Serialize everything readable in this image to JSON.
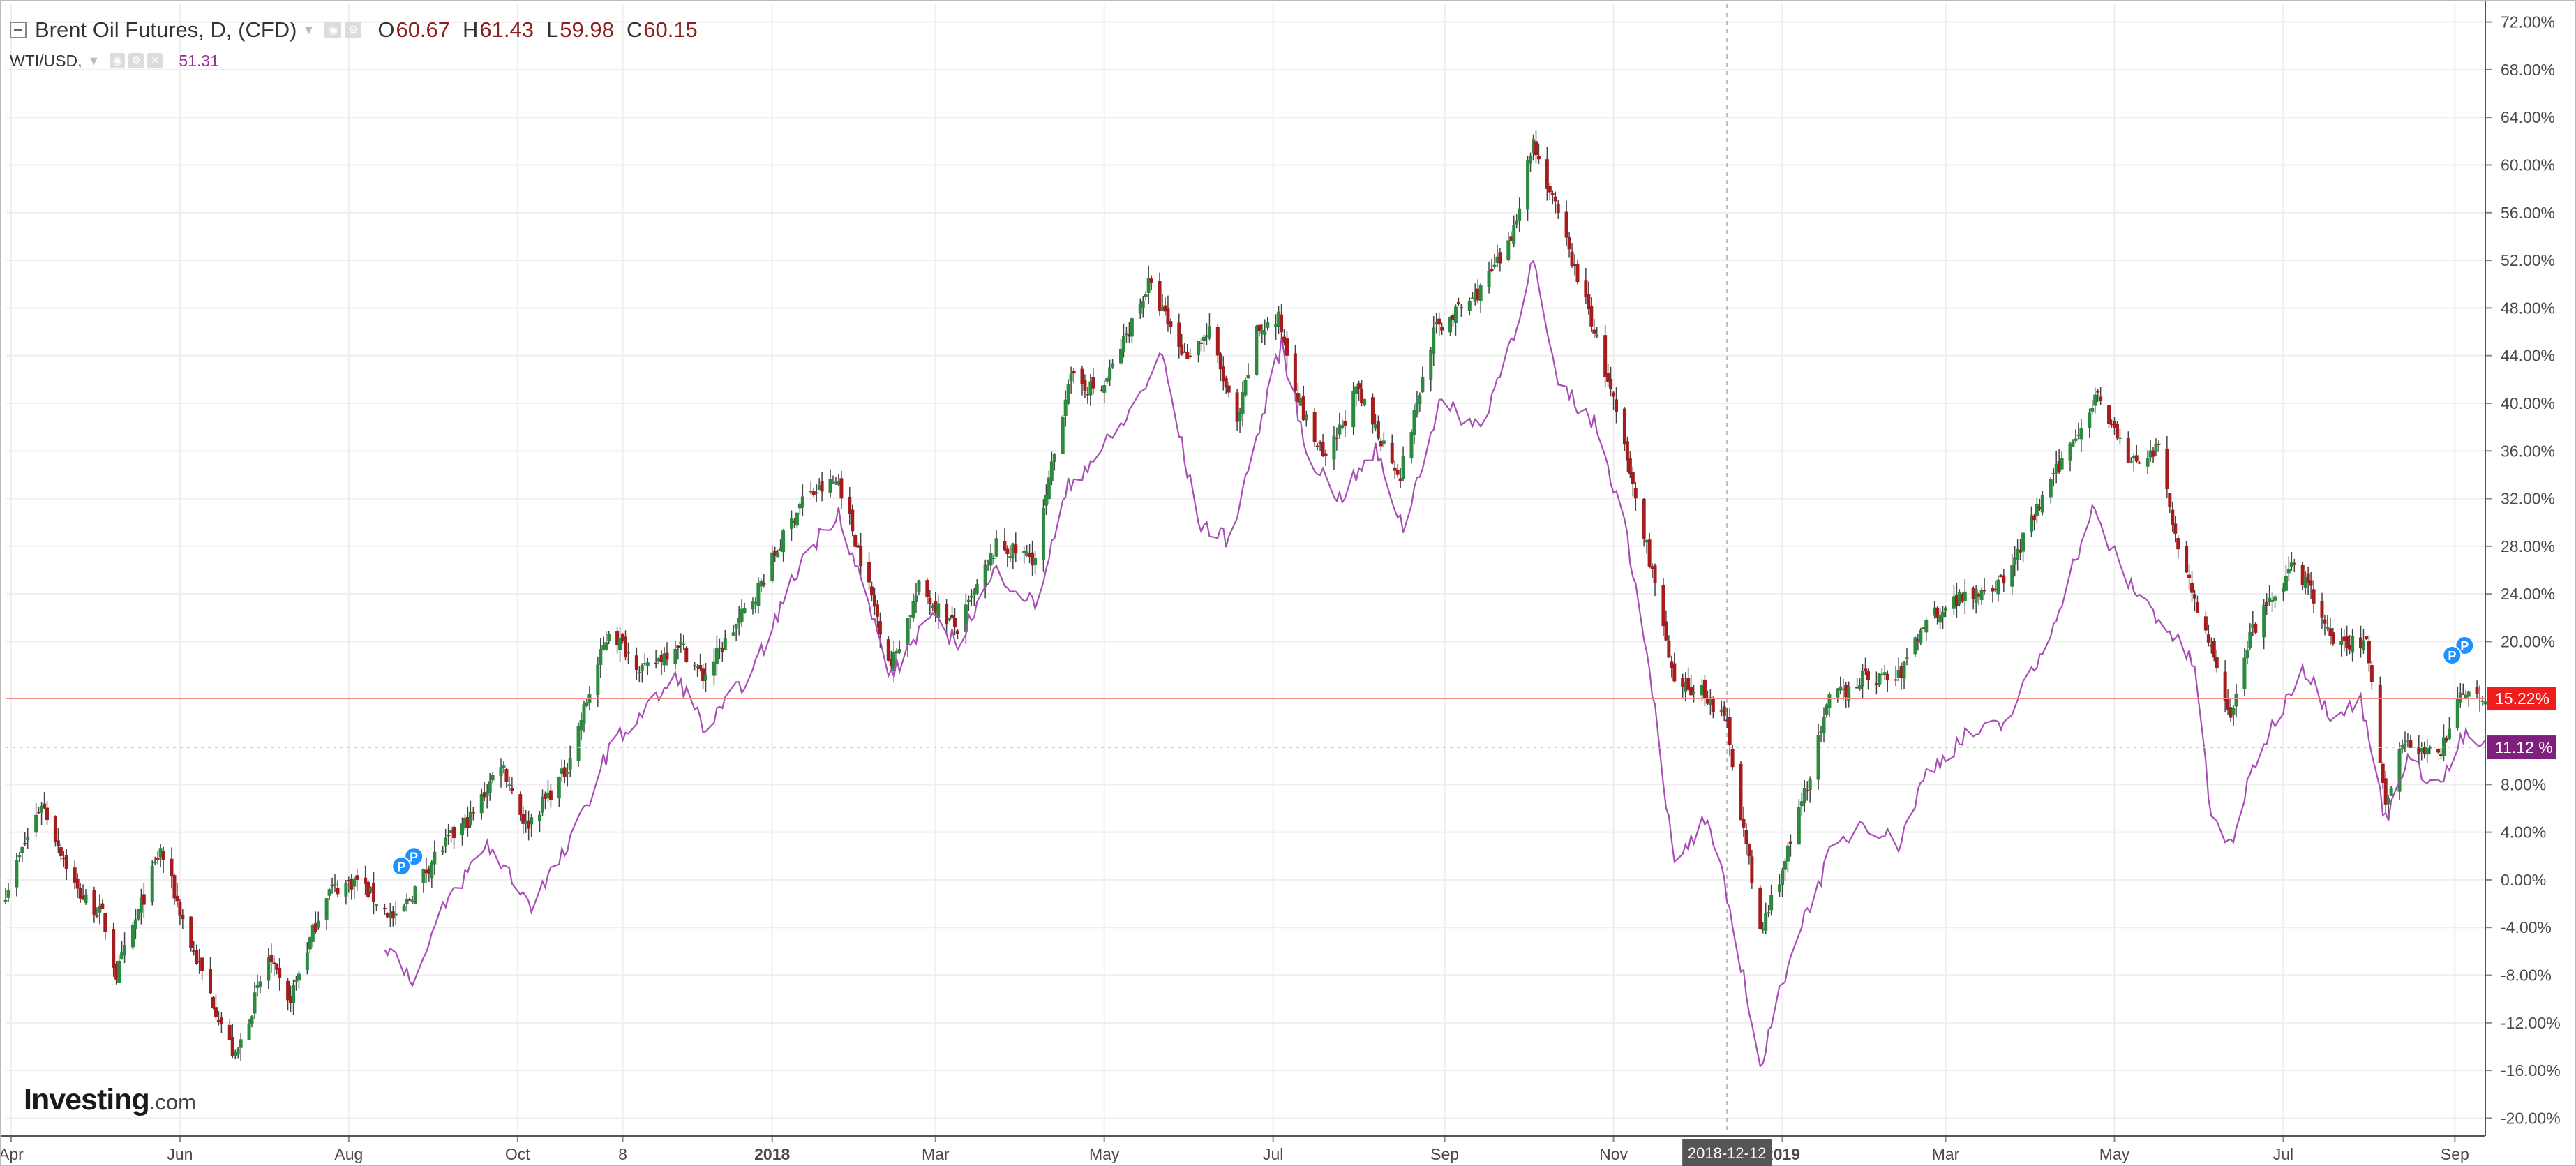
{
  "header": {
    "title": "Brent Oil Futures, D, (CFD)",
    "ohlc": [
      {
        "key": "O",
        "value": "60.67"
      },
      {
        "key": "H",
        "value": "61.43"
      },
      {
        "key": "L",
        "value": "59.98"
      },
      {
        "key": "C",
        "value": "60.15"
      }
    ],
    "compare_symbol": "WTI/USD,",
    "compare_value": "51.31"
  },
  "logo": {
    "main": "Investing",
    "suffix": ".com"
  },
  "crosshair_date": "2018-12-12",
  "colors": {
    "up": "#2b8a3e",
    "down": "#a61c1c",
    "wti_line": "#a74fb5",
    "brent_price_line": "#f28a8a",
    "brent_label_bg": "#f01d1d",
    "wti_label_bg": "#7f2080",
    "grid": "#eeeeee",
    "event_marker": "#1e90ff"
  },
  "chart_data": {
    "type": "line",
    "title": "Brent Oil Futures, D, (CFD)",
    "xlabel": "",
    "ylabel": "",
    "y_unit": "%",
    "ylim": [
      -21.5,
      73.5
    ],
    "grid": true,
    "legend": "top-left",
    "x_range": [
      "2017-03-30",
      "2019-09-12"
    ],
    "x_ticks": [
      {
        "label": "Apr",
        "date": "2017-04-01"
      },
      {
        "label": "Jun",
        "date": "2017-06-01"
      },
      {
        "label": "Aug",
        "date": "2017-08-01"
      },
      {
        "label": "Oct",
        "date": "2017-10-01"
      },
      {
        "label": "8",
        "date": "2017-11-08"
      },
      {
        "label": "2018",
        "date": "2018-01-01"
      },
      {
        "label": "Mar",
        "date": "2018-03-01"
      },
      {
        "label": "May",
        "date": "2018-05-01"
      },
      {
        "label": "Jul",
        "date": "2018-07-01"
      },
      {
        "label": "Sep",
        "date": "2018-09-01"
      },
      {
        "label": "Nov",
        "date": "2018-11-01"
      },
      {
        "label": "2019",
        "date": "2019-01-01"
      },
      {
        "label": "Mar",
        "date": "2019-03-01"
      },
      {
        "label": "May",
        "date": "2019-05-01"
      },
      {
        "label": "Jul",
        "date": "2019-07-01"
      },
      {
        "label": "Sep",
        "date": "2019-09-01"
      }
    ],
    "y_ticks": [
      {
        "value": 72,
        "label": "72.00%"
      },
      {
        "value": 68,
        "label": "68.00%"
      },
      {
        "value": 64,
        "label": "64.00%"
      },
      {
        "value": 60,
        "label": "60.00%"
      },
      {
        "value": 56,
        "label": "56.00%"
      },
      {
        "value": 52,
        "label": "52.00%"
      },
      {
        "value": 48,
        "label": "48.00%"
      },
      {
        "value": 44,
        "label": "44.00%"
      },
      {
        "value": 40,
        "label": "40.00%"
      },
      {
        "value": 36,
        "label": "36.00%"
      },
      {
        "value": 32,
        "label": "32.00%"
      },
      {
        "value": 28,
        "label": "28.00%"
      },
      {
        "value": 24,
        "label": "24.00%"
      },
      {
        "value": 20,
        "label": "20.00%"
      },
      {
        "value": 8,
        "label": "8.00%"
      },
      {
        "value": 4,
        "label": "4.00%"
      },
      {
        "value": 0,
        "label": "0.00%"
      },
      {
        "value": -4,
        "label": "-4.00%"
      },
      {
        "value": -8,
        "label": "-8.00%"
      },
      {
        "value": -12,
        "label": "-12.00%"
      },
      {
        "value": -16,
        "label": "-16.00%"
      },
      {
        "value": -20,
        "label": "-20.00%"
      }
    ],
    "price_labels": [
      {
        "value": 15.22,
        "text": "15.22%",
        "series": "brent"
      },
      {
        "value": 11.12,
        "text": "11.12 %",
        "series": "wti"
      }
    ],
    "event_markers": [
      {
        "date": "2017-08-22",
        "value": 0.8,
        "text": "P"
      },
      {
        "date": "2019-09-02",
        "value": 18.5,
        "text": "P"
      }
    ],
    "series": [
      {
        "name": "Brent Oil Futures, D, (CFD)",
        "style": "candlestick",
        "points": [
          {
            "date": "2017-03-30",
            "value": -1
          },
          {
            "date": "2017-04-12",
            "value": 6.5
          },
          {
            "date": "2017-04-25",
            "value": -1
          },
          {
            "date": "2017-05-04",
            "value": -3
          },
          {
            "date": "2017-05-09",
            "value": -8
          },
          {
            "date": "2017-05-25",
            "value": 2.5
          },
          {
            "date": "2017-06-05",
            "value": -5.5
          },
          {
            "date": "2017-06-21",
            "value": -15
          },
          {
            "date": "2017-07-03",
            "value": -6.5
          },
          {
            "date": "2017-07-10",
            "value": -10.5
          },
          {
            "date": "2017-07-24",
            "value": -1
          },
          {
            "date": "2017-08-04",
            "value": 0
          },
          {
            "date": "2017-08-18",
            "value": -3.5
          },
          {
            "date": "2017-09-01",
            "value": 2
          },
          {
            "date": "2017-09-15",
            "value": 5.5
          },
          {
            "date": "2017-09-25",
            "value": 10
          },
          {
            "date": "2017-10-04",
            "value": 4.5
          },
          {
            "date": "2017-10-18",
            "value": 9
          },
          {
            "date": "2017-11-03",
            "value": 21
          },
          {
            "date": "2017-11-16",
            "value": 17.5
          },
          {
            "date": "2017-11-28",
            "value": 20
          },
          {
            "date": "2017-12-07",
            "value": 17
          },
          {
            "date": "2017-12-26",
            "value": 24
          },
          {
            "date": "2018-01-12",
            "value": 32
          },
          {
            "date": "2018-01-25",
            "value": 33.5
          },
          {
            "date": "2018-02-13",
            "value": 18
          },
          {
            "date": "2018-02-23",
            "value": 24.5
          },
          {
            "date": "2018-03-09",
            "value": 21
          },
          {
            "date": "2018-03-23",
            "value": 28
          },
          {
            "date": "2018-04-06",
            "value": 27
          },
          {
            "date": "2018-04-18",
            "value": 42
          },
          {
            "date": "2018-04-30",
            "value": 41
          },
          {
            "date": "2018-05-17",
            "value": 50
          },
          {
            "date": "2018-05-30",
            "value": 44
          },
          {
            "date": "2018-06-08",
            "value": 46
          },
          {
            "date": "2018-06-18",
            "value": 38
          },
          {
            "date": "2018-06-25",
            "value": 46
          },
          {
            "date": "2018-07-03",
            "value": 47
          },
          {
            "date": "2018-07-12",
            "value": 39
          },
          {
            "date": "2018-07-20",
            "value": 35
          },
          {
            "date": "2018-07-31",
            "value": 41
          },
          {
            "date": "2018-08-16",
            "value": 34
          },
          {
            "date": "2018-08-28",
            "value": 46
          },
          {
            "date": "2018-09-12",
            "value": 49
          },
          {
            "date": "2018-09-24",
            "value": 53
          },
          {
            "date": "2018-10-03",
            "value": 62
          },
          {
            "date": "2018-10-10",
            "value": 57
          },
          {
            "date": "2018-10-24",
            "value": 47
          },
          {
            "date": "2018-11-01",
            "value": 40
          },
          {
            "date": "2018-11-08",
            "value": 33
          },
          {
            "date": "2018-11-15",
            "value": 26
          },
          {
            "date": "2018-11-23",
            "value": 16
          },
          {
            "date": "2018-12-03",
            "value": 16
          },
          {
            "date": "2018-12-12",
            "value": 13
          },
          {
            "date": "2018-12-24",
            "value": -4.5
          },
          {
            "date": "2019-01-04",
            "value": 3
          },
          {
            "date": "2019-01-18",
            "value": 15
          },
          {
            "date": "2019-01-30",
            "value": 17
          },
          {
            "date": "2019-02-12",
            "value": 17
          },
          {
            "date": "2019-02-22",
            "value": 22
          },
          {
            "date": "2019-03-08",
            "value": 24
          },
          {
            "date": "2019-03-22",
            "value": 25
          },
          {
            "date": "2019-04-05",
            "value": 32
          },
          {
            "date": "2019-04-25",
            "value": 41
          },
          {
            "date": "2019-05-06",
            "value": 35
          },
          {
            "date": "2019-05-17",
            "value": 36
          },
          {
            "date": "2019-05-23",
            "value": 29
          },
          {
            "date": "2019-06-05",
            "value": 19
          },
          {
            "date": "2019-06-12",
            "value": 14
          },
          {
            "date": "2019-06-20",
            "value": 21
          },
          {
            "date": "2019-07-04",
            "value": 26
          },
          {
            "date": "2019-07-10",
            "value": 25
          },
          {
            "date": "2019-07-18",
            "value": 20
          },
          {
            "date": "2019-07-31",
            "value": 20
          },
          {
            "date": "2019-08-07",
            "value": 6.5
          },
          {
            "date": "2019-08-14",
            "value": 12
          },
          {
            "date": "2019-08-26",
            "value": 10
          },
          {
            "date": "2019-09-03",
            "value": 16
          },
          {
            "date": "2019-09-12",
            "value": 15.22
          }
        ]
      },
      {
        "name": "WTI/USD,",
        "style": "line",
        "points": [
          {
            "date": "2017-08-13",
            "value": -5
          },
          {
            "date": "2017-08-25",
            "value": -8.5
          },
          {
            "date": "2017-09-05",
            "value": -2
          },
          {
            "date": "2017-09-20",
            "value": 3
          },
          {
            "date": "2017-10-06",
            "value": -2
          },
          {
            "date": "2017-10-20",
            "value": 3
          },
          {
            "date": "2017-11-03",
            "value": 11
          },
          {
            "date": "2017-11-15",
            "value": 14
          },
          {
            "date": "2017-11-28",
            "value": 17
          },
          {
            "date": "2017-12-08",
            "value": 12.5
          },
          {
            "date": "2017-12-26",
            "value": 18
          },
          {
            "date": "2018-01-12",
            "value": 27
          },
          {
            "date": "2018-01-25",
            "value": 31
          },
          {
            "date": "2018-02-13",
            "value": 17
          },
          {
            "date": "2018-02-26",
            "value": 22
          },
          {
            "date": "2018-03-09",
            "value": 20
          },
          {
            "date": "2018-03-23",
            "value": 26
          },
          {
            "date": "2018-04-06",
            "value": 23
          },
          {
            "date": "2018-04-18",
            "value": 33
          },
          {
            "date": "2018-05-07",
            "value": 38
          },
          {
            "date": "2018-05-22",
            "value": 44
          },
          {
            "date": "2018-06-04",
            "value": 30
          },
          {
            "date": "2018-06-15",
            "value": 28.5
          },
          {
            "date": "2018-06-25",
            "value": 37
          },
          {
            "date": "2018-07-04",
            "value": 45
          },
          {
            "date": "2018-07-13",
            "value": 36
          },
          {
            "date": "2018-07-25",
            "value": 32
          },
          {
            "date": "2018-08-07",
            "value": 36
          },
          {
            "date": "2018-08-17",
            "value": 29.5
          },
          {
            "date": "2018-08-30",
            "value": 40
          },
          {
            "date": "2018-09-14",
            "value": 38
          },
          {
            "date": "2018-09-26",
            "value": 46
          },
          {
            "date": "2018-10-03",
            "value": 52
          },
          {
            "date": "2018-10-11",
            "value": 42
          },
          {
            "date": "2018-10-26",
            "value": 38
          },
          {
            "date": "2018-11-05",
            "value": 30
          },
          {
            "date": "2018-11-14",
            "value": 18
          },
          {
            "date": "2018-11-23",
            "value": 1
          },
          {
            "date": "2018-12-04",
            "value": 5
          },
          {
            "date": "2018-12-10",
            "value": 0.5
          },
          {
            "date": "2018-12-18",
            "value": -8
          },
          {
            "date": "2018-12-24",
            "value": -16
          },
          {
            "date": "2019-01-04",
            "value": -6
          },
          {
            "date": "2019-01-18",
            "value": 2
          },
          {
            "date": "2019-01-30",
            "value": 5
          },
          {
            "date": "2019-02-12",
            "value": 3
          },
          {
            "date": "2019-02-22",
            "value": 9
          },
          {
            "date": "2019-03-08",
            "value": 12
          },
          {
            "date": "2019-03-22",
            "value": 13
          },
          {
            "date": "2019-04-05",
            "value": 19
          },
          {
            "date": "2019-04-23",
            "value": 31
          },
          {
            "date": "2019-05-06",
            "value": 25
          },
          {
            "date": "2019-05-17",
            "value": 22
          },
          {
            "date": "2019-05-30",
            "value": 18
          },
          {
            "date": "2019-06-05",
            "value": 5
          },
          {
            "date": "2019-06-12",
            "value": 3
          },
          {
            "date": "2019-06-21",
            "value": 10
          },
          {
            "date": "2019-07-08",
            "value": 18
          },
          {
            "date": "2019-07-18",
            "value": 14
          },
          {
            "date": "2019-07-29",
            "value": 15
          },
          {
            "date": "2019-08-07",
            "value": 5
          },
          {
            "date": "2019-08-14",
            "value": 10
          },
          {
            "date": "2019-08-27",
            "value": 8
          },
          {
            "date": "2019-09-04",
            "value": 12
          },
          {
            "date": "2019-09-12",
            "value": 11.12
          }
        ]
      }
    ]
  }
}
